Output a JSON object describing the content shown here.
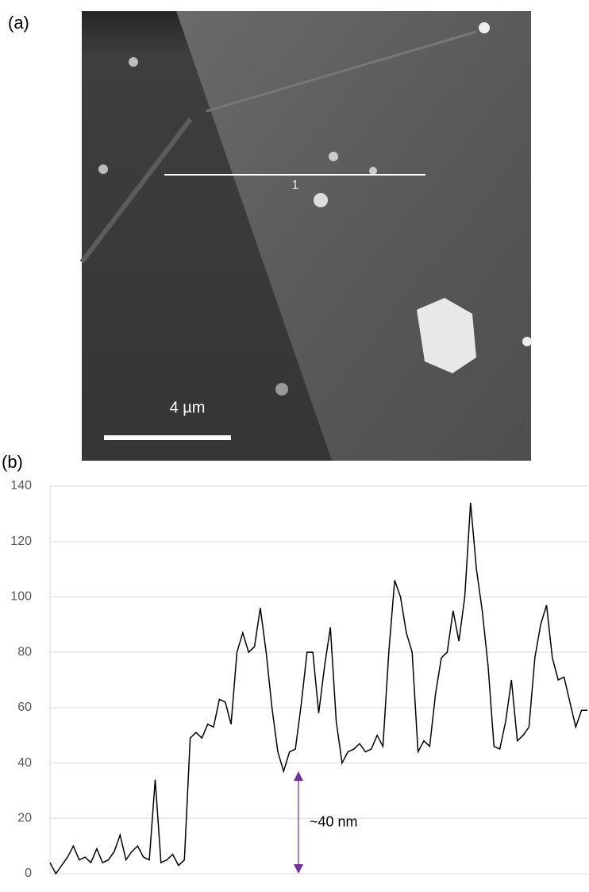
{
  "figure_a": {
    "label": "(a)",
    "scale_bar": "4 µm",
    "line_label": "1"
  },
  "chart_data": {
    "type": "line",
    "panel_label": "(b)",
    "annotation": "~40 nm",
    "color": "#000000",
    "grid": true,
    "ylim": [
      0,
      140
    ],
    "yticks": [
      0,
      20,
      40,
      60,
      80,
      100,
      120,
      140
    ],
    "values": [
      4,
      0,
      3,
      6,
      10,
      5,
      6,
      4,
      9,
      4,
      5,
      8,
      14,
      5,
      8,
      10,
      6,
      5,
      34,
      4,
      5,
      7,
      3,
      5,
      49,
      51,
      49,
      54,
      53,
      63,
      62,
      54,
      80,
      87,
      80,
      82,
      96,
      80,
      60,
      44,
      37,
      44,
      45,
      61,
      80,
      80,
      58,
      75,
      89,
      55,
      40,
      44,
      45,
      47,
      44,
      45,
      50,
      46,
      80,
      106,
      100,
      87,
      80,
      44,
      48,
      46,
      65,
      78,
      80,
      95,
      84,
      100,
      134,
      110,
      95,
      75,
      46,
      45,
      55,
      70,
      48,
      50,
      53,
      78,
      90,
      97,
      78,
      70,
      71,
      62,
      53,
      59,
      59
    ]
  }
}
